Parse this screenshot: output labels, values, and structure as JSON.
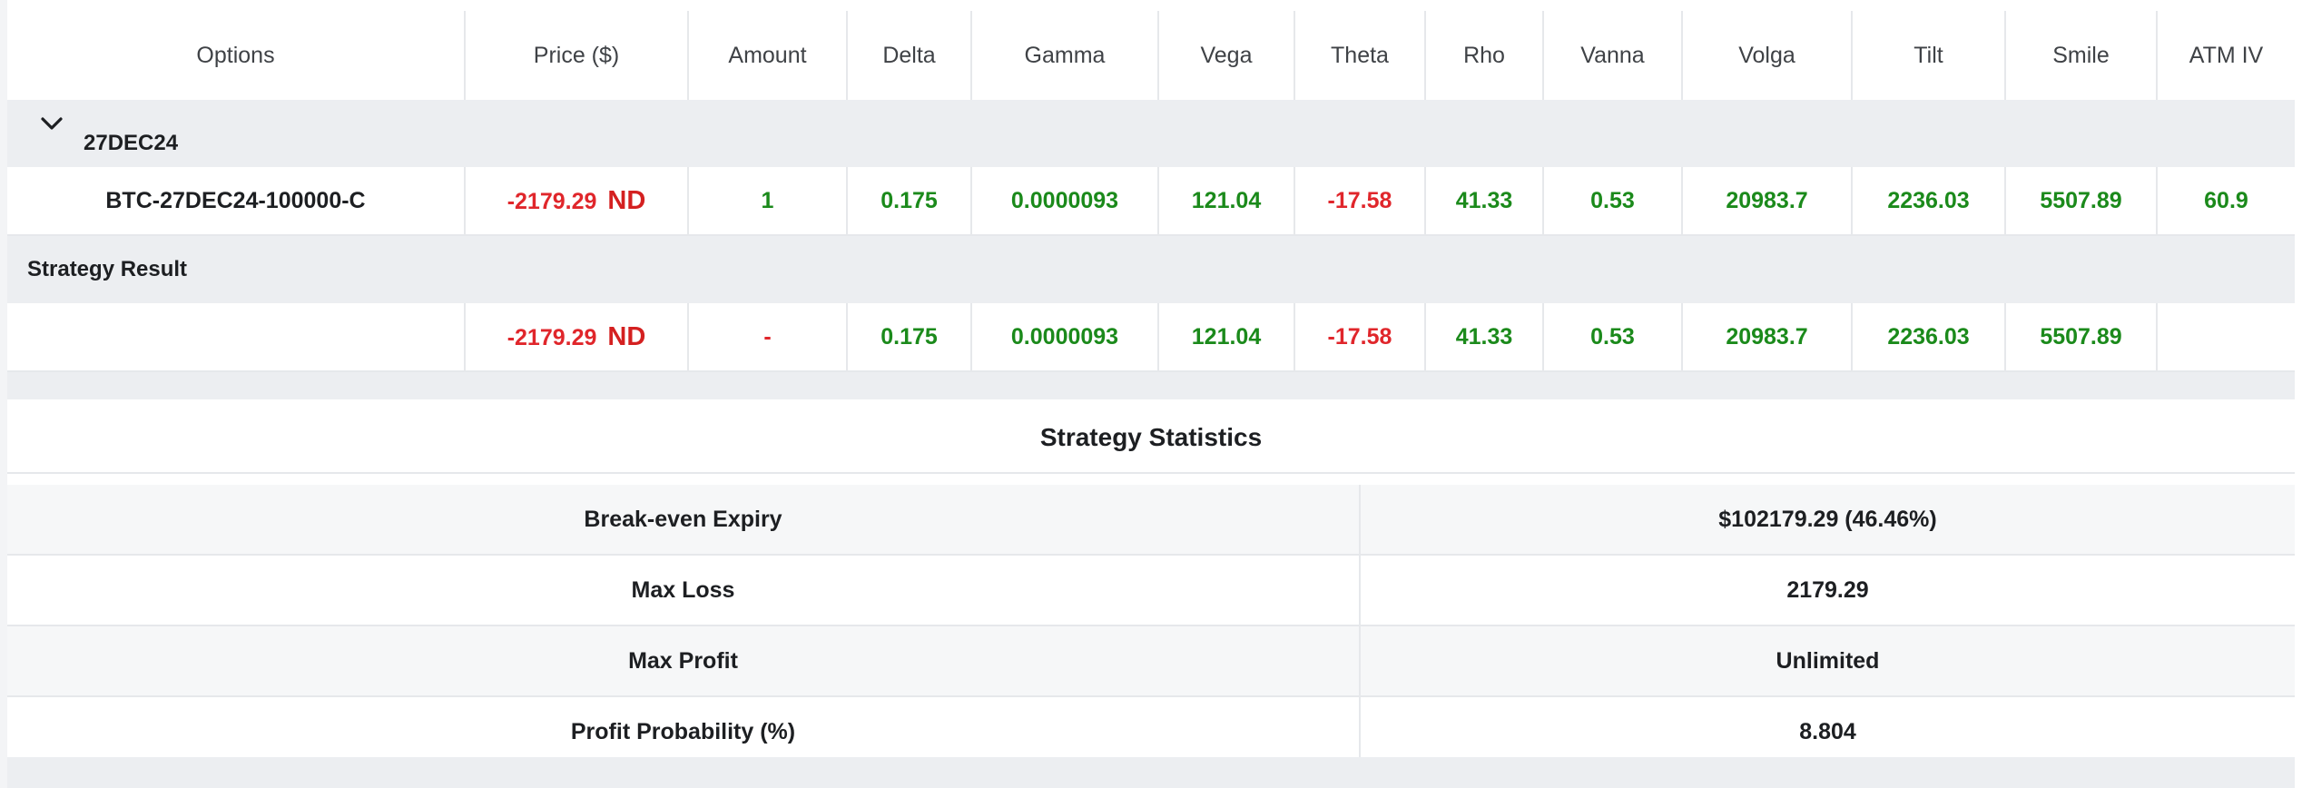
{
  "table": {
    "headers": [
      "Options",
      "Price ($)",
      "Amount",
      "Delta",
      "Gamma",
      "Vega",
      "Theta",
      "Rho",
      "Vanna",
      "Volga",
      "Tilt",
      "Smile",
      "ATM IV"
    ],
    "group_label": "27DEC24",
    "row": {
      "name": "BTC-27DEC24-100000-C",
      "price": "-2179.29",
      "price_tag": "ND",
      "amount": "1",
      "delta": "0.175",
      "gamma": "0.0000093",
      "vega": "121.04",
      "theta": "-17.58",
      "rho": "41.33",
      "vanna": "0.53",
      "volga": "20983.7",
      "tilt": "2236.03",
      "smile": "5507.89",
      "atm_iv": "60.9"
    },
    "strategy_label": "Strategy Result",
    "strategy": {
      "price": "-2179.29",
      "price_tag": "ND",
      "amount": "-",
      "delta": "0.175",
      "gamma": "0.0000093",
      "vega": "121.04",
      "theta": "-17.58",
      "rho": "41.33",
      "vanna": "0.53",
      "volga": "20983.7",
      "tilt": "2236.03",
      "smile": "5507.89",
      "atm_iv": ""
    }
  },
  "stats": {
    "title": "Strategy Statistics",
    "rows": [
      {
        "label": "Break-even Expiry",
        "value": "$102179.29 (46.46%)"
      },
      {
        "label": "Max Loss",
        "value": "2179.29"
      },
      {
        "label": "Max Profit",
        "value": "Unlimited"
      },
      {
        "label": "Profit Probability (%)",
        "value": "8.804"
      }
    ]
  },
  "colors": {
    "positive": "#1b8a1b",
    "negative": "#e0262b",
    "row_shade": "#eceef1"
  },
  "icons": {
    "group_toggle": "chevron-down-icon"
  }
}
